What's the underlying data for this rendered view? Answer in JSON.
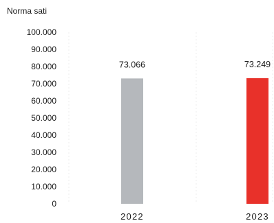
{
  "chart_data": {
    "type": "bar",
    "title": "Norma sati",
    "xlabel": "",
    "ylabel": "",
    "categories": [
      "2022",
      "2023"
    ],
    "values": [
      73066,
      73249
    ],
    "value_labels": [
      "73.066",
      "73.249"
    ],
    "bar_colors": [
      "#b5b8bc",
      "#e8312a"
    ],
    "ylim": [
      0,
      100000
    ],
    "yticks": [
      0,
      10000,
      20000,
      30000,
      40000,
      50000,
      60000,
      70000,
      80000,
      90000,
      100000
    ],
    "ytick_labels": [
      "0",
      "10.000",
      "20.000",
      "30.000",
      "40.000",
      "50.000",
      "60.000",
      "70.000",
      "80.000",
      "90.000",
      "100.000"
    ],
    "grid": "faint vertical",
    "legend": "none"
  }
}
